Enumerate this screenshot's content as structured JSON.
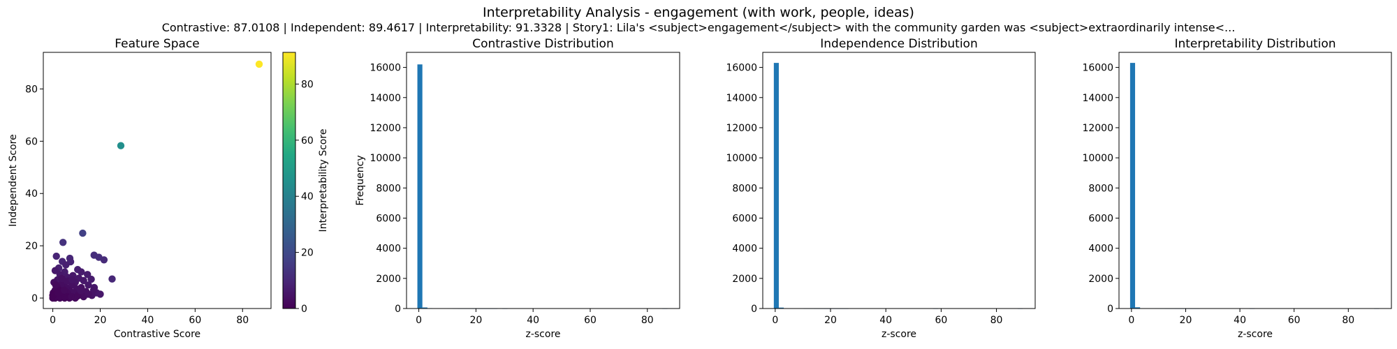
{
  "figure": {
    "title": "Interpretability Analysis - engagement (with work, people, ideas)",
    "subtitle": "Contrastive: 87.0108 | Independent: 89.4617 | Interpretability: 91.3328 | Story1: Lila's <subject>engagement</subject> with the community garden was <subject>extraordinarily intense<..."
  },
  "chart_data": [
    {
      "type": "scatter",
      "title": "Feature Space",
      "xlabel": "Contrastive Score",
      "ylabel": "Independent Score",
      "xlim": [
        -4,
        92
      ],
      "ylim": [
        -4,
        94
      ],
      "xticks": [
        0,
        20,
        40,
        60,
        80
      ],
      "yticks": [
        0,
        20,
        40,
        60,
        80
      ],
      "grid": false,
      "colorbar": {
        "label": "Interpretability Score",
        "range": [
          0,
          91.3
        ],
        "ticks": [
          0,
          20,
          40,
          60,
          80
        ],
        "colormap": "viridis"
      },
      "points": [
        [
          87.0,
          89.5,
          91.3
        ],
        [
          28.7,
          58.3,
          45.0
        ],
        [
          12.6,
          24.8,
          17.0
        ],
        [
          4.3,
          21.3,
          13.0
        ],
        [
          17.4,
          16.4,
          12.0
        ],
        [
          19.4,
          15.6,
          12.0
        ],
        [
          21.6,
          14.6,
          11.0
        ],
        [
          1.5,
          16.0,
          9.0
        ],
        [
          7.2,
          15.2,
          10.0
        ],
        [
          7.5,
          13.9,
          9.0
        ],
        [
          4.0,
          14.0,
          9.0
        ],
        [
          5.5,
          12.7,
          8.0
        ],
        [
          2.5,
          11.5,
          8.0
        ],
        [
          1.0,
          10.5,
          6.0
        ],
        [
          10.5,
          10.9,
          8.0
        ],
        [
          12.0,
          10.0,
          7.0
        ],
        [
          5.0,
          10.0,
          7.0
        ],
        [
          3.0,
          9.0,
          6.0
        ],
        [
          8.5,
          8.6,
          6.0
        ],
        [
          14.6,
          9.0,
          7.0
        ],
        [
          25.0,
          7.3,
          10.0
        ],
        [
          16.2,
          7.2,
          7.0
        ],
        [
          11.0,
          7.6,
          6.0
        ],
        [
          13.0,
          6.7,
          6.0
        ],
        [
          6.0,
          8.0,
          6.0
        ],
        [
          2.0,
          7.0,
          5.0
        ],
        [
          0.5,
          6.0,
          3.0
        ],
        [
          4.5,
          6.2,
          4.0
        ],
        [
          9.5,
          6.0,
          5.0
        ],
        [
          15.0,
          5.0,
          6.0
        ],
        [
          17.5,
          4.0,
          6.0
        ],
        [
          18.5,
          2.0,
          6.0
        ],
        [
          16.5,
          1.0,
          5.0
        ],
        [
          20.0,
          1.5,
          6.0
        ],
        [
          17.2,
          3.0,
          5.0
        ],
        [
          14.0,
          2.5,
          4.0
        ],
        [
          12.0,
          4.0,
          4.0
        ],
        [
          10.0,
          3.5,
          4.0
        ],
        [
          8.0,
          5.0,
          4.0
        ],
        [
          7.0,
          3.0,
          3.0
        ],
        [
          5.5,
          4.0,
          3.0
        ],
        [
          3.5,
          5.0,
          3.0
        ],
        [
          2.0,
          4.0,
          2.0
        ],
        [
          1.0,
          3.0,
          2.0
        ],
        [
          0.2,
          2.0,
          1.0
        ],
        [
          1.5,
          1.0,
          1.0
        ],
        [
          3.0,
          2.0,
          2.0
        ],
        [
          4.5,
          1.0,
          2.0
        ],
        [
          6.0,
          2.0,
          2.0
        ],
        [
          7.5,
          1.0,
          2.0
        ],
        [
          9.0,
          2.0,
          3.0
        ],
        [
          11.0,
          1.5,
          3.0
        ],
        [
          13.0,
          0.5,
          3.0
        ],
        [
          15.0,
          1.5,
          4.0
        ],
        [
          0.0,
          0.0,
          0.5
        ],
        [
          0.5,
          0.3,
          0.5
        ],
        [
          1.0,
          0.0,
          0.5
        ],
        [
          2.0,
          0.5,
          1.0
        ],
        [
          3.0,
          0.0,
          1.0
        ],
        [
          4.0,
          0.5,
          1.0
        ],
        [
          5.0,
          0.0,
          1.0
        ],
        [
          6.0,
          0.5,
          1.0
        ],
        [
          7.0,
          0.0,
          1.0
        ],
        [
          8.0,
          0.5,
          2.0
        ],
        [
          9.5,
          0.0,
          2.0
        ],
        [
          10.5,
          0.8,
          2.0
        ],
        [
          0.3,
          1.2,
          0.5
        ],
        [
          2.5,
          3.0,
          1.0
        ],
        [
          6.5,
          6.5,
          4.0
        ],
        [
          3.8,
          7.5,
          4.0
        ],
        [
          8.2,
          7.0,
          5.0
        ],
        [
          11.8,
          2.8,
          4.0
        ],
        [
          4.8,
          3.0,
          2.0
        ],
        [
          1.2,
          5.0,
          2.0
        ],
        [
          0.0,
          1.0,
          0.5
        ],
        [
          2.2,
          2.0,
          1.0
        ]
      ]
    },
    {
      "type": "bar",
      "title": "Contrastive Distribution",
      "xlabel": "z-score",
      "ylabel": "Frequency",
      "xlim": [
        -4.3,
        91.3
      ],
      "ylim": [
        0,
        17000
      ],
      "xticks": [
        0,
        20,
        40,
        60,
        80
      ],
      "yticks": [
        0,
        2000,
        4000,
        6000,
        8000,
        10000,
        12000,
        14000,
        16000
      ],
      "bin_edges_range": [
        -0.5,
        87.0108
      ],
      "bins": 50,
      "values": [
        16200,
        70,
        25,
        12,
        8,
        5,
        4,
        3,
        2,
        2,
        2,
        1,
        1,
        1,
        1,
        1,
        0,
        1,
        0,
        0,
        0,
        0,
        0,
        0,
        0,
        0,
        0,
        0,
        0,
        0,
        0,
        0,
        0,
        0,
        0,
        0,
        0,
        0,
        0,
        0,
        0,
        0,
        0,
        0,
        0,
        0,
        0,
        0,
        0,
        1
      ]
    },
    {
      "type": "bar",
      "title": "Independence Distribution",
      "xlabel": "z-score",
      "ylabel": "",
      "xlim": [
        -4.5,
        94.0
      ],
      "ylim": [
        0,
        17000
      ],
      "xticks": [
        0,
        20,
        40,
        60,
        80
      ],
      "yticks": [
        0,
        2000,
        4000,
        6000,
        8000,
        10000,
        12000,
        14000,
        16000
      ],
      "bin_edges_range": [
        -0.5,
        89.4617
      ],
      "bins": 50,
      "values": [
        16300,
        60,
        20,
        10,
        7,
        5,
        3,
        3,
        2,
        2,
        1,
        1,
        1,
        1,
        1,
        0,
        0,
        0,
        0,
        0,
        0,
        0,
        0,
        0,
        0,
        0,
        0,
        0,
        0,
        0,
        0,
        0,
        1,
        0,
        0,
        0,
        0,
        0,
        0,
        0,
        0,
        0,
        0,
        0,
        0,
        0,
        0,
        0,
        0,
        1
      ]
    },
    {
      "type": "bar",
      "title": "Interpretability Distribution",
      "xlabel": "z-score",
      "ylabel": "",
      "xlim": [
        -4.6,
        95.9
      ],
      "ylim": [
        0,
        17000
      ],
      "xticks": [
        0,
        20,
        40,
        60,
        80
      ],
      "yticks": [
        0,
        2000,
        4000,
        6000,
        8000,
        10000,
        12000,
        14000,
        16000
      ],
      "bin_edges_range": [
        -0.5,
        91.3328
      ],
      "bins": 50,
      "values": [
        16300,
        80,
        22,
        10,
        6,
        4,
        3,
        2,
        2,
        1,
        1,
        1,
        1,
        1,
        0,
        0,
        0,
        0,
        0,
        0,
        0,
        0,
        0,
        0,
        1,
        0,
        0,
        0,
        0,
        0,
        0,
        0,
        0,
        0,
        0,
        0,
        0,
        0,
        0,
        0,
        0,
        0,
        0,
        0,
        0,
        0,
        0,
        0,
        0,
        1
      ]
    }
  ],
  "colors": {
    "bar": "#1f77b4",
    "axis": "#000000",
    "background": "#ffffff"
  }
}
